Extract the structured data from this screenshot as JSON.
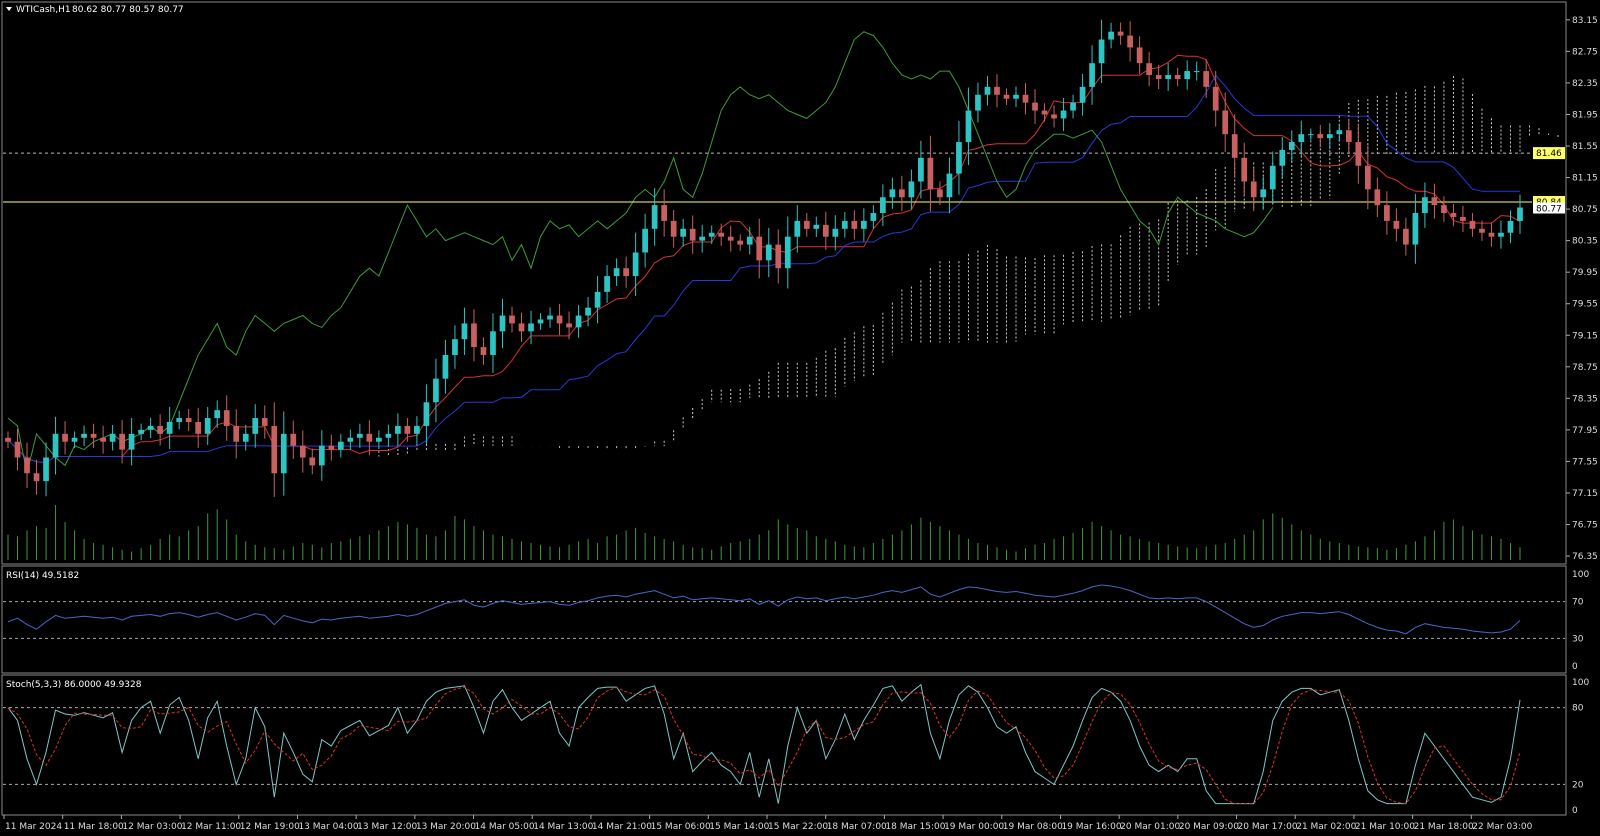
{
  "chart_data": [
    {
      "type": "candlestick",
      "symbol_label": "WTICash,H1",
      "ohlc_label": "80.62 80.77 80.57 80.77",
      "yticks": [
        "83.15",
        "82.75",
        "82.35",
        "81.95",
        "81.55",
        "81.15",
        "80.75",
        "80.35",
        "79.95",
        "79.55",
        "79.15",
        "78.75",
        "78.35",
        "77.95",
        "77.55",
        "77.15",
        "76.75",
        "76.35"
      ],
      "ylim": [
        76.3,
        83.3
      ],
      "xticks": [
        "11 Mar 2024",
        "11 Mar 18:00",
        "12 Mar 03:00",
        "12 Mar 11:00",
        "12 Mar 19:00",
        "13 Mar 04:00",
        "13 Mar 12:00",
        "13 Mar 20:00",
        "14 Mar 05:00",
        "14 Mar 13:00",
        "14 Mar 21:00",
        "15 Mar 06:00",
        "15 Mar 14:00",
        "15 Mar 22:00",
        "18 Mar 07:00",
        "18 Mar 15:00",
        "19 Mar 00:00",
        "19 Mar 08:00",
        "19 Mar 16:00",
        "20 Mar 01:00",
        "20 Mar 09:00",
        "20 Mar 17:00",
        "21 Mar 02:00",
        "21 Mar 10:00",
        "21 Mar 18:00",
        "22 Mar 03:00"
      ],
      "hlines": [
        {
          "value": 80.84,
          "label": "80.84",
          "color": "#ffff66",
          "style": "solid"
        },
        {
          "value": 81.46,
          "label": "81.46",
          "color": "#ffff66",
          "style": "dashed"
        }
      ],
      "price_label": "80.77",
      "close": [
        77.8,
        77.6,
        77.4,
        77.3,
        77.6,
        77.9,
        77.8,
        77.85,
        77.9,
        77.85,
        77.8,
        77.9,
        77.7,
        77.9,
        77.95,
        78.0,
        77.9,
        78.05,
        78.1,
        78.05,
        77.9,
        78.1,
        78.2,
        78.0,
        77.8,
        77.9,
        78.1,
        78.0,
        77.4,
        77.9,
        77.75,
        77.6,
        77.5,
        77.75,
        77.7,
        77.8,
        77.85,
        77.9,
        77.8,
        77.85,
        77.9,
        78.0,
        77.9,
        78.0,
        78.3,
        78.6,
        78.9,
        79.1,
        79.3,
        79.0,
        78.9,
        79.2,
        79.4,
        79.3,
        79.2,
        79.3,
        79.35,
        79.4,
        79.3,
        79.25,
        79.4,
        79.5,
        79.7,
        79.9,
        80.0,
        79.9,
        80.2,
        80.5,
        80.8,
        80.6,
        80.4,
        80.5,
        80.35,
        80.4,
        80.45,
        80.4,
        80.35,
        80.3,
        80.4,
        80.1,
        80.3,
        80.0,
        80.4,
        80.6,
        80.5,
        80.55,
        80.4,
        80.5,
        80.6,
        80.5,
        80.6,
        80.7,
        80.9,
        81.0,
        80.9,
        81.1,
        81.4,
        81.0,
        80.9,
        81.2,
        81.6,
        82.0,
        82.2,
        82.3,
        82.2,
        82.15,
        82.2,
        82.1,
        82.0,
        81.95,
        81.9,
        82.0,
        82.1,
        82.3,
        82.6,
        82.9,
        83.0,
        82.95,
        82.8,
        82.6,
        82.45,
        82.4,
        82.45,
        82.4,
        82.5,
        82.5,
        82.3,
        82.0,
        81.7,
        81.4,
        81.1,
        80.9,
        81.0,
        81.3,
        81.5,
        81.6,
        81.7,
        81.7,
        81.65,
        81.7,
        81.75,
        81.6,
        81.3,
        81.0,
        80.8,
        80.6,
        80.5,
        80.3,
        80.7,
        80.9,
        80.8,
        80.7,
        80.65,
        80.6,
        80.5,
        80.45,
        80.4,
        80.45,
        80.6,
        80.77
      ],
      "volume": [
        30,
        28,
        35,
        40,
        38,
        65,
        45,
        35,
        25,
        20,
        18,
        15,
        12,
        10,
        14,
        18,
        25,
        30,
        28,
        35,
        40,
        55,
        60,
        48,
        30,
        22,
        18,
        15,
        14,
        12,
        16,
        20,
        18,
        15,
        20,
        22,
        25,
        28,
        30,
        35,
        40,
        45,
        42,
        38,
        30,
        28,
        35,
        52,
        48,
        40,
        35,
        30,
        28,
        25,
        22,
        20,
        18,
        16,
        15,
        18,
        22,
        25,
        20,
        28,
        30,
        35,
        38,
        32,
        28,
        25,
        22,
        18,
        15,
        14,
        12,
        16,
        20,
        22,
        25,
        30,
        35,
        48,
        42,
        38,
        35,
        28,
        25,
        22,
        18,
        16,
        15,
        20,
        25,
        30,
        35,
        42,
        50,
        45,
        40,
        35,
        30,
        25,
        20,
        18,
        15,
        12,
        10,
        14,
        18,
        20,
        25,
        28,
        32,
        38,
        45,
        40,
        35,
        30,
        28,
        25,
        22,
        20,
        18,
        16,
        15,
        14,
        16,
        18,
        20,
        25,
        30,
        35,
        48,
        55,
        50,
        42,
        35,
        30,
        25,
        22,
        20,
        18,
        16,
        15,
        14,
        12,
        14,
        18,
        22,
        28,
        35,
        45,
        48,
        40,
        35,
        30,
        28,
        25,
        20,
        15
      ],
      "ichimoku": {
        "tenkan_color": "#d73333",
        "kijun_color": "#2b36d8",
        "chikou_color": "#3e9b3e",
        "cloud_color": "#ffffff"
      }
    },
    {
      "type": "line",
      "indicator_label": "RSI(14) 49.5182",
      "yticks": [
        "100",
        "70",
        "30",
        "0"
      ],
      "ylim": [
        0,
        100
      ],
      "levels": [
        70,
        30
      ],
      "color": "#4a67c8",
      "values": [
        48,
        52,
        45,
        40,
        48,
        55,
        52,
        53,
        54,
        53,
        52,
        53,
        50,
        54,
        55,
        56,
        54,
        57,
        58,
        56,
        53,
        56,
        58,
        54,
        50,
        53,
        57,
        55,
        45,
        55,
        52,
        49,
        47,
        51,
        50,
        52,
        53,
        54,
        52,
        53,
        54,
        56,
        54,
        56,
        60,
        64,
        68,
        70,
        72,
        66,
        64,
        68,
        71,
        69,
        67,
        68,
        69,
        70,
        67,
        66,
        69,
        71,
        74,
        76,
        77,
        75,
        78,
        80,
        82,
        78,
        74,
        76,
        72,
        73,
        74,
        73,
        72,
        71,
        73,
        67,
        71,
        65,
        72,
        75,
        73,
        74,
        71,
        73,
        75,
        73,
        75,
        77,
        80,
        82,
        80,
        83,
        86,
        78,
        75,
        79,
        83,
        86,
        85,
        83,
        81,
        80,
        81,
        79,
        77,
        76,
        75,
        77,
        79,
        82,
        86,
        88,
        87,
        85,
        82,
        78,
        74,
        73,
        74,
        73,
        74,
        74,
        70,
        64,
        58,
        52,
        46,
        42,
        44,
        50,
        54,
        56,
        58,
        58,
        57,
        58,
        59,
        56,
        51,
        46,
        42,
        39,
        38,
        35,
        42,
        46,
        44,
        42,
        41,
        40,
        38,
        37,
        36,
        37,
        40,
        49.5
      ]
    },
    {
      "type": "line",
      "indicator_label": "Stoch(5,3,3) 86.0000 49.9328",
      "yticks": [
        "100",
        "80",
        "20",
        "0"
      ],
      "ylim": [
        0,
        100
      ],
      "levels": [
        80,
        20
      ],
      "main_color": "#7fc6c6",
      "signal_color": "#e03030",
      "main": [
        80,
        70,
        40,
        20,
        45,
        78,
        75,
        74,
        76,
        74,
        72,
        76,
        45,
        70,
        80,
        85,
        60,
        82,
        88,
        70,
        40,
        72,
        85,
        50,
        20,
        40,
        80,
        65,
        10,
        60,
        45,
        28,
        22,
        55,
        50,
        62,
        66,
        70,
        58,
        62,
        66,
        80,
        60,
        70,
        85,
        92,
        95,
        96,
        97,
        80,
        60,
        85,
        94,
        80,
        70,
        75,
        80,
        85,
        60,
        50,
        80,
        88,
        95,
        96,
        96,
        85,
        90,
        95,
        97,
        75,
        40,
        60,
        30,
        38,
        45,
        35,
        30,
        20,
        45,
        10,
        40,
        5,
        50,
        80,
        60,
        70,
        40,
        55,
        75,
        55,
        70,
        82,
        95,
        97,
        85,
        92,
        98,
        60,
        40,
        70,
        90,
        97,
        92,
        80,
        65,
        60,
        65,
        45,
        30,
        25,
        20,
        35,
        50,
        70,
        88,
        95,
        92,
        85,
        70,
        50,
        35,
        30,
        35,
        30,
        40,
        40,
        15,
        5,
        5,
        5,
        5,
        5,
        30,
        70,
        85,
        92,
        95,
        95,
        90,
        92,
        94,
        70,
        40,
        15,
        8,
        5,
        5,
        5,
        35,
        60,
        50,
        40,
        30,
        20,
        10,
        8,
        6,
        10,
        40,
        86
      ]
    }
  ]
}
